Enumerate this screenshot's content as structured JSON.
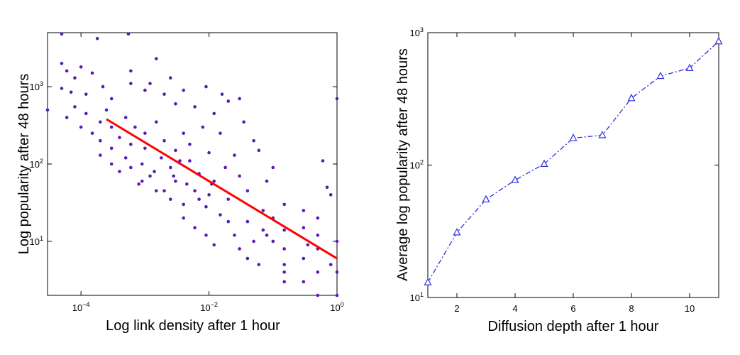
{
  "chart_data": [
    {
      "type": "scatter",
      "xlabel": "Log link density after 1 hour",
      "ylabel": "Log popularity after 48 hours",
      "x_scale": "log",
      "y_scale": "log",
      "xlim": [
        3e-05,
        1
      ],
      "ylim": [
        2,
        5000
      ],
      "xticks": [
        {
          "base": "10",
          "exp": "−4",
          "value": 0.0001
        },
        {
          "base": "10",
          "exp": "−2",
          "value": 0.01
        },
        {
          "base": "10",
          "exp": "0",
          "value": 1
        }
      ],
      "yticks": [
        {
          "base": "10",
          "exp": "1",
          "value": 10
        },
        {
          "base": "10",
          "exp": "2",
          "value": 100
        },
        {
          "base": "10",
          "exp": "3",
          "value": 1000
        }
      ],
      "point_color": "#5a1ab4",
      "fit_color": "#ff0000",
      "fit_line": {
        "x": [
          0.00025,
          1
        ],
        "y": [
          380,
          6
        ]
      },
      "series": [
        {
          "values": [
            {
              "x": 5e-05,
              "y": 4800
            },
            {
              "x": 5e-05,
              "y": 2000
            },
            {
              "x": 5e-05,
              "y": 950
            },
            {
              "x": 6e-05,
              "y": 1600
            },
            {
              "x": 7e-05,
              "y": 850
            },
            {
              "x": 8e-05,
              "y": 1300
            },
            {
              "x": 0.0001,
              "y": 1800
            },
            {
              "x": 0.00012,
              "y": 800
            },
            {
              "x": 0.00015,
              "y": 1500
            },
            {
              "x": 0.00018,
              "y": 4200
            },
            {
              "x": 0.00022,
              "y": 1000
            },
            {
              "x": 0.0003,
              "y": 700
            },
            {
              "x": 0.00055,
              "y": 4800
            },
            {
              "x": 0.0006,
              "y": 1100
            },
            {
              "x": 0.0006,
              "y": 1600
            },
            {
              "x": 0.001,
              "y": 900
            },
            {
              "x": 0.0012,
              "y": 1100
            },
            {
              "x": 0.0015,
              "y": 2300
            },
            {
              "x": 0.002,
              "y": 800
            },
            {
              "x": 0.0025,
              "y": 1300
            },
            {
              "x": 0.003,
              "y": 600
            },
            {
              "x": 0.004,
              "y": 900
            },
            {
              "x": 0.006,
              "y": 550
            },
            {
              "x": 0.009,
              "y": 1000
            },
            {
              "x": 0.012,
              "y": 450
            },
            {
              "x": 0.016,
              "y": 800
            },
            {
              "x": 0.02,
              "y": 650
            },
            {
              "x": 0.03,
              "y": 700
            },
            {
              "x": 0.035,
              "y": 350
            },
            {
              "x": 3e-05,
              "y": 500
            },
            {
              "x": 1,
              "y": 700
            },
            {
              "x": 1,
              "y": 2
            },
            {
              "x": 0.5,
              "y": 2
            },
            {
              "x": 1,
              "y": 10
            },
            {
              "x": 1,
              "y": 4
            },
            {
              "x": 0.5,
              "y": 8
            },
            {
              "x": 0.5,
              "y": 20
            },
            {
              "x": 0.5,
              "y": 4
            },
            {
              "x": 0.5,
              "y": 12
            },
            {
              "x": 0.8,
              "y": 5
            },
            {
              "x": 0.8,
              "y": 40
            },
            {
              "x": 0.7,
              "y": 50
            },
            {
              "x": 0.6,
              "y": 110
            },
            {
              "x": 0.3,
              "y": 15
            },
            {
              "x": 0.3,
              "y": 25
            },
            {
              "x": 0.3,
              "y": 6
            },
            {
              "x": 0.35,
              "y": 9
            },
            {
              "x": 0.15,
              "y": 3
            },
            {
              "x": 0.15,
              "y": 8
            },
            {
              "x": 0.15,
              "y": 14
            },
            {
              "x": 0.15,
              "y": 30
            },
            {
              "x": 0.15,
              "y": 5
            },
            {
              "x": 0.1,
              "y": 20
            },
            {
              "x": 0.1,
              "y": 10
            },
            {
              "x": 0.1,
              "y": 90
            },
            {
              "x": 0.08,
              "y": 60
            },
            {
              "x": 0.08,
              "y": 12
            },
            {
              "x": 0.07,
              "y": 25
            },
            {
              "x": 0.06,
              "y": 150
            },
            {
              "x": 0.05,
              "y": 200
            },
            {
              "x": 0.04,
              "y": 45
            },
            {
              "x": 0.04,
              "y": 18
            },
            {
              "x": 0.03,
              "y": 70
            },
            {
              "x": 0.025,
              "y": 130
            },
            {
              "x": 0.02,
              "y": 35
            },
            {
              "x": 0.018,
              "y": 90
            },
            {
              "x": 0.015,
              "y": 250
            },
            {
              "x": 0.012,
              "y": 60
            },
            {
              "x": 0.01,
              "y": 40
            },
            {
              "x": 0.01,
              "y": 140
            },
            {
              "x": 0.009,
              "y": 28
            },
            {
              "x": 0.008,
              "y": 300
            },
            {
              "x": 0.007,
              "y": 75
            },
            {
              "x": 0.006,
              "y": 45
            },
            {
              "x": 0.005,
              "y": 180
            },
            {
              "x": 0.005,
              "y": 110
            },
            {
              "x": 0.004,
              "y": 30
            },
            {
              "x": 0.004,
              "y": 250
            },
            {
              "x": 0.003,
              "y": 60
            },
            {
              "x": 0.003,
              "y": 150
            },
            {
              "x": 0.0025,
              "y": 90
            },
            {
              "x": 0.002,
              "y": 45
            },
            {
              "x": 0.002,
              "y": 200
            },
            {
              "x": 0.0018,
              "y": 120
            },
            {
              "x": 0.0015,
              "y": 350
            },
            {
              "x": 0.0012,
              "y": 70
            },
            {
              "x": 0.001,
              "y": 160
            },
            {
              "x": 0.001,
              "y": 250
            },
            {
              "x": 0.0009,
              "y": 100
            },
            {
              "x": 0.0008,
              "y": 55
            },
            {
              "x": 0.0007,
              "y": 300
            },
            {
              "x": 0.0006,
              "y": 180
            },
            {
              "x": 0.0005,
              "y": 120
            },
            {
              "x": 0.0005,
              "y": 400
            },
            {
              "x": 0.0004,
              "y": 80
            },
            {
              "x": 0.0004,
              "y": 220
            },
            {
              "x": 0.0003,
              "y": 160
            },
            {
              "x": 0.0003,
              "y": 300
            },
            {
              "x": 0.00025,
              "y": 500
            },
            {
              "x": 0.0002,
              "y": 200
            },
            {
              "x": 0.0002,
              "y": 350
            },
            {
              "x": 0.00015,
              "y": 250
            },
            {
              "x": 0.00012,
              "y": 450
            },
            {
              "x": 0.0001,
              "y": 300
            },
            {
              "x": 8e-05,
              "y": 550
            },
            {
              "x": 6e-05,
              "y": 400
            },
            {
              "x": 0.0002,
              "y": 130
            },
            {
              "x": 0.0003,
              "y": 100
            },
            {
              "x": 0.0006,
              "y": 90
            },
            {
              "x": 0.0009,
              "y": 60
            },
            {
              "x": 0.0015,
              "y": 45
            },
            {
              "x": 0.0025,
              "y": 35
            },
            {
              "x": 0.004,
              "y": 20
            },
            {
              "x": 0.006,
              "y": 15
            },
            {
              "x": 0.009,
              "y": 12
            },
            {
              "x": 0.012,
              "y": 9
            },
            {
              "x": 0.015,
              "y": 22
            },
            {
              "x": 0.02,
              "y": 18
            },
            {
              "x": 0.025,
              "y": 12
            },
            {
              "x": 0.03,
              "y": 8
            },
            {
              "x": 0.04,
              "y": 6
            },
            {
              "x": 0.05,
              "y": 10
            },
            {
              "x": 0.06,
              "y": 5
            },
            {
              "x": 0.07,
              "y": 14
            },
            {
              "x": 0.15,
              "y": 4
            },
            {
              "x": 0.3,
              "y": 3
            },
            {
              "x": 0.0014,
              "y": 80
            },
            {
              "x": 0.0028,
              "y": 70
            },
            {
              "x": 0.0035,
              "y": 110
            },
            {
              "x": 0.007,
              "y": 35
            },
            {
              "x": 0.011,
              "y": 55
            },
            {
              "x": 0.0045,
              "y": 55
            }
          ]
        }
      ]
    },
    {
      "type": "line",
      "xlabel": "Diffusion depth after 1 hour",
      "ylabel": "Average log popularity after 48 hours",
      "x_scale": "linear",
      "y_scale": "log",
      "xlim": [
        1,
        11
      ],
      "ylim": [
        10,
        1000
      ],
      "xticks": [
        {
          "label": "2",
          "value": 2
        },
        {
          "label": "4",
          "value": 4
        },
        {
          "label": "6",
          "value": 6
        },
        {
          "label": "8",
          "value": 8
        },
        {
          "label": "10",
          "value": 10
        }
      ],
      "yticks": [
        {
          "base": "10",
          "exp": "1",
          "value": 10
        },
        {
          "base": "10",
          "exp": "2",
          "value": 100
        },
        {
          "base": "10",
          "exp": "3",
          "value": 1000
        }
      ],
      "line_color": "#3030e0",
      "line_style": "dash-dot",
      "marker": "triangle",
      "series": [
        {
          "x": [
            1,
            2,
            3,
            4,
            5,
            6,
            7,
            8,
            9,
            10,
            11
          ],
          "values": [
            13,
            31,
            55,
            77,
            102,
            160,
            168,
            320,
            470,
            540,
            860
          ]
        }
      ]
    }
  ]
}
